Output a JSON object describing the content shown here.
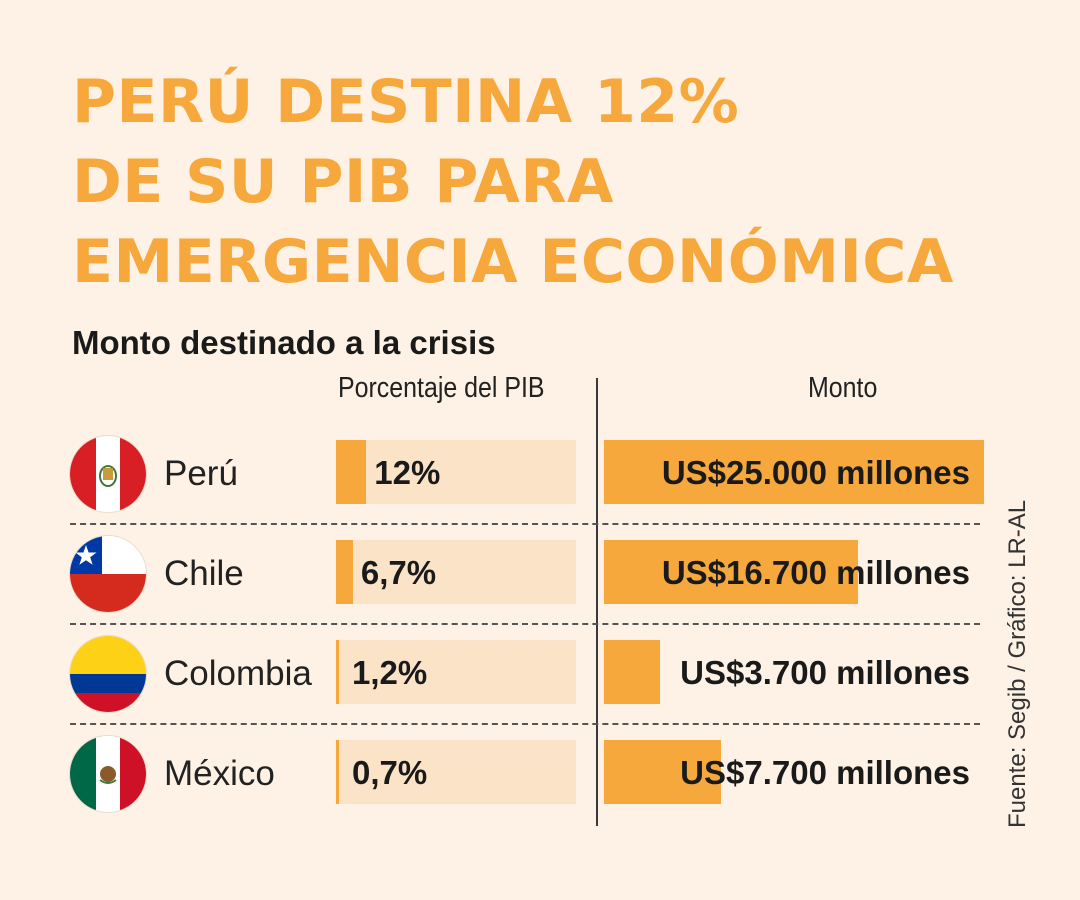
{
  "title_lines": [
    "PERÚ DESTINA 12%",
    "DE SU PIB PARA",
    "EMERGENCIA ECONÓMICA"
  ],
  "subtitle": "Monto destinado a la crisis",
  "columns": {
    "pib": "Porcentaje del PIB",
    "monto": "Monto"
  },
  "source": "Fuente: Segib / Gráfico: LR-AL",
  "colors": {
    "accent": "#f6a83c",
    "track": "#fbe3c8",
    "background": "#fdf2e5"
  },
  "chart_data": {
    "type": "bar",
    "categories": [
      "Perú",
      "Chile",
      "Colombia",
      "México"
    ],
    "series": [
      {
        "name": "Porcentaje del PIB",
        "values": [
          12,
          6.7,
          1.2,
          0.7
        ],
        "labels": [
          "12%",
          "6,7%",
          "1,2%",
          "0,7%"
        ]
      },
      {
        "name": "Monto",
        "values": [
          25000,
          16700,
          3700,
          7700
        ],
        "labels": [
          "US$25.000 millones",
          "US$16.700 millones",
          "US$3.700 millones",
          "US$7.700 millones"
        ]
      }
    ],
    "icons": [
      "peru-flag-icon",
      "chile-flag-icon",
      "colombia-flag-icon",
      "mexico-flag-icon"
    ]
  }
}
